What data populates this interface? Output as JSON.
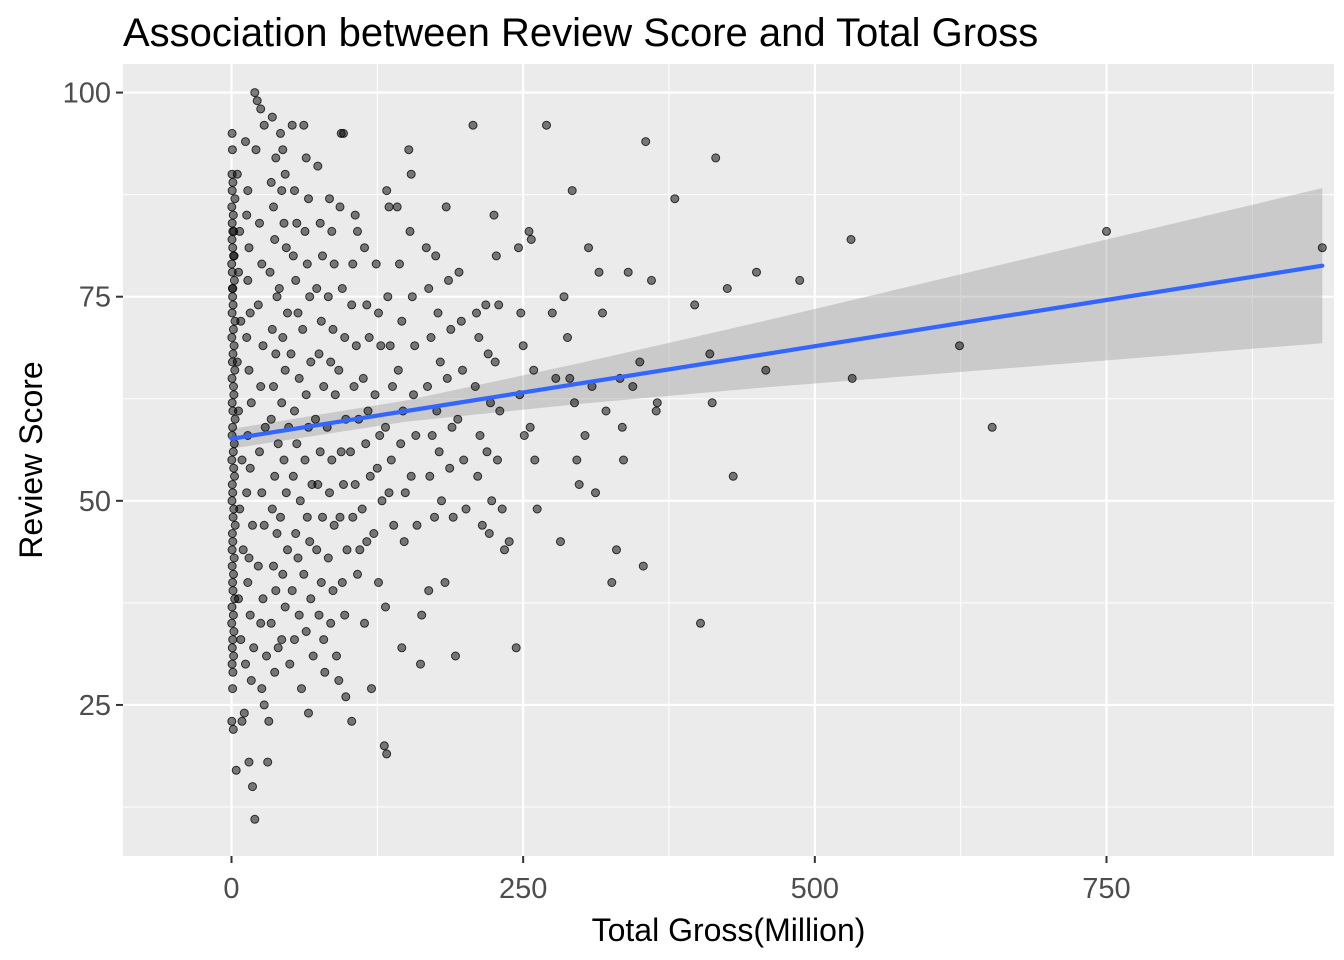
{
  "chart_data": {
    "type": "scatter",
    "title": "Association between Review Score and Total Gross",
    "xlabel": "Total Gross(Million)",
    "ylabel": "Review Score",
    "xlim": [
      -93,
      945
    ],
    "ylim": [
      6.5,
      103.5
    ],
    "x_ticks": [
      0,
      250,
      500,
      750
    ],
    "y_ticks": [
      25,
      50,
      75,
      100
    ],
    "grid": true,
    "legend": "none",
    "colors": {
      "panel": "#ebebeb",
      "grid": "#ffffff",
      "point": "#000000",
      "trend": "#3366ff",
      "band": "#999999"
    },
    "trend": {
      "method": "linear",
      "x": [
        0,
        150,
        300,
        450,
        600,
        750,
        935
      ],
      "y": [
        57.6,
        61.0,
        64.4,
        67.8,
        71.2,
        74.6,
        78.8
      ],
      "lower": [
        56.4,
        59.7,
        61.9,
        63.8,
        65.5,
        67.2,
        69.3
      ],
      "upper": [
        58.8,
        62.3,
        66.9,
        71.8,
        76.9,
        82.0,
        88.3
      ]
    },
    "points": [
      [
        0.5,
        95
      ],
      [
        0.8,
        93
      ],
      [
        1.2,
        89
      ],
      [
        0.3,
        86
      ],
      [
        1.5,
        85
      ],
      [
        0.6,
        84
      ],
      [
        2.0,
        83
      ],
      [
        0.4,
        82
      ],
      [
        1.0,
        81
      ],
      [
        1.8,
        80
      ],
      [
        0.2,
        79
      ],
      [
        0.7,
        78
      ],
      [
        2.5,
        77
      ],
      [
        1.1,
        76
      ],
      [
        0.9,
        75
      ],
      [
        1.4,
        74
      ],
      [
        0.5,
        73
      ],
      [
        3.0,
        72
      ],
      [
        1.6,
        71
      ],
      [
        0.3,
        70
      ],
      [
        2.2,
        69
      ],
      [
        1.3,
        68
      ],
      [
        0.8,
        67
      ],
      [
        2.8,
        66
      ],
      [
        0.4,
        65
      ],
      [
        1.7,
        64
      ],
      [
        2.1,
        63
      ],
      [
        0.6,
        62
      ],
      [
        1.2,
        61
      ],
      [
        3.1,
        60
      ],
      [
        0.9,
        59
      ],
      [
        0.5,
        58
      ],
      [
        2.4,
        57
      ],
      [
        1.5,
        56
      ],
      [
        0.3,
        55
      ],
      [
        1.9,
        54
      ],
      [
        2.6,
        53
      ],
      [
        0.7,
        52
      ],
      [
        1.0,
        51
      ],
      [
        0.4,
        50
      ],
      [
        2.0,
        49
      ],
      [
        1.4,
        48
      ],
      [
        3.2,
        47
      ],
      [
        0.8,
        46
      ],
      [
        1.1,
        45
      ],
      [
        0.5,
        44
      ],
      [
        2.3,
        43
      ],
      [
        0.6,
        42
      ],
      [
        1.7,
        41
      ],
      [
        0.9,
        40
      ],
      [
        1.3,
        39
      ],
      [
        2.7,
        38
      ],
      [
        0.4,
        37
      ],
      [
        1.6,
        36
      ],
      [
        0.2,
        35
      ],
      [
        2.1,
        34
      ],
      [
        1.0,
        33
      ],
      [
        0.7,
        32
      ],
      [
        1.8,
        31
      ],
      [
        0.5,
        30
      ],
      [
        1.2,
        29
      ],
      [
        0.9,
        27
      ],
      [
        0.3,
        23
      ],
      [
        1.5,
        22
      ],
      [
        0.6,
        88
      ],
      [
        2.9,
        87
      ],
      [
        0.4,
        90
      ],
      [
        1.1,
        83
      ],
      [
        2.2,
        80
      ],
      [
        0.8,
        76
      ],
      [
        5,
        90
      ],
      [
        7,
        83
      ],
      [
        6,
        78
      ],
      [
        8,
        72
      ],
      [
        5,
        67
      ],
      [
        6,
        61
      ],
      [
        9,
        55
      ],
      [
        7,
        49
      ],
      [
        10,
        44
      ],
      [
        6,
        38
      ],
      [
        8,
        33
      ],
      [
        12,
        30
      ],
      [
        11,
        24
      ],
      [
        9,
        23
      ],
      [
        4,
        17
      ],
      [
        14,
        88
      ],
      [
        13,
        85
      ],
      [
        15,
        81
      ],
      [
        14,
        77
      ],
      [
        16,
        73
      ],
      [
        13,
        70
      ],
      [
        15,
        66
      ],
      [
        17,
        62
      ],
      [
        14,
        58
      ],
      [
        16,
        54
      ],
      [
        13,
        51
      ],
      [
        18,
        47
      ],
      [
        15,
        43
      ],
      [
        14,
        40
      ],
      [
        16,
        36
      ],
      [
        19,
        32
      ],
      [
        17,
        28
      ],
      [
        15,
        18
      ],
      [
        18,
        15
      ],
      [
        20,
        11
      ],
      [
        12,
        94
      ],
      [
        21,
        93
      ],
      [
        20,
        100
      ],
      [
        22,
        99
      ],
      [
        25,
        98
      ],
      [
        28,
        96
      ],
      [
        24,
        84
      ],
      [
        26,
        79
      ],
      [
        23,
        74
      ],
      [
        27,
        69
      ],
      [
        25,
        64
      ],
      [
        29,
        59
      ],
      [
        24,
        56
      ],
      [
        26,
        51
      ],
      [
        28,
        47
      ],
      [
        23,
        42
      ],
      [
        27,
        38
      ],
      [
        25,
        35
      ],
      [
        30,
        31
      ],
      [
        26,
        27
      ],
      [
        28,
        25
      ],
      [
        32,
        23
      ],
      [
        31,
        18
      ],
      [
        35,
        97
      ],
      [
        38,
        92
      ],
      [
        34,
        89
      ],
      [
        36,
        86
      ],
      [
        37,
        82
      ],
      [
        33,
        78
      ],
      [
        39,
        75
      ],
      [
        35,
        71
      ],
      [
        38,
        68
      ],
      [
        36,
        64
      ],
      [
        34,
        60
      ],
      [
        40,
        57
      ],
      [
        37,
        53
      ],
      [
        35,
        49
      ],
      [
        39,
        46
      ],
      [
        36,
        42
      ],
      [
        38,
        39
      ],
      [
        34,
        35
      ],
      [
        40,
        32
      ],
      [
        37,
        29
      ],
      [
        42,
        95
      ],
      [
        44,
        93
      ],
      [
        46,
        90
      ],
      [
        43,
        88
      ],
      [
        45,
        84
      ],
      [
        47,
        81
      ],
      [
        41,
        76
      ],
      [
        48,
        73
      ],
      [
        44,
        70
      ],
      [
        46,
        66
      ],
      [
        43,
        62
      ],
      [
        49,
        59
      ],
      [
        45,
        55
      ],
      [
        47,
        51
      ],
      [
        42,
        48
      ],
      [
        48,
        44
      ],
      [
        44,
        41
      ],
      [
        46,
        37
      ],
      [
        43,
        33
      ],
      [
        50,
        30
      ],
      [
        52,
        96
      ],
      [
        54,
        88
      ],
      [
        56,
        84
      ],
      [
        53,
        80
      ],
      [
        55,
        77
      ],
      [
        57,
        73
      ],
      [
        51,
        68
      ],
      [
        58,
        65
      ],
      [
        54,
        61
      ],
      [
        56,
        57
      ],
      [
        53,
        53
      ],
      [
        59,
        50
      ],
      [
        55,
        46
      ],
      [
        57,
        43
      ],
      [
        52,
        39
      ],
      [
        58,
        36
      ],
      [
        54,
        33
      ],
      [
        60,
        27
      ],
      [
        62,
        96
      ],
      [
        64,
        92
      ],
      [
        66,
        87
      ],
      [
        63,
        83
      ],
      [
        65,
        79
      ],
      [
        67,
        75
      ],
      [
        61,
        71
      ],
      [
        68,
        67
      ],
      [
        64,
        63
      ],
      [
        66,
        59
      ],
      [
        63,
        55
      ],
      [
        69,
        52
      ],
      [
        65,
        48
      ],
      [
        67,
        45
      ],
      [
        62,
        41
      ],
      [
        68,
        38
      ],
      [
        64,
        34
      ],
      [
        70,
        31
      ],
      [
        66,
        24
      ],
      [
        74,
        91
      ],
      [
        76,
        84
      ],
      [
        78,
        80
      ],
      [
        73,
        76
      ],
      [
        77,
        72
      ],
      [
        75,
        68
      ],
      [
        79,
        64
      ],
      [
        72,
        60
      ],
      [
        76,
        56
      ],
      [
        74,
        52
      ],
      [
        78,
        48
      ],
      [
        73,
        44
      ],
      [
        77,
        40
      ],
      [
        75,
        36
      ],
      [
        79,
        33
      ],
      [
        80,
        29
      ],
      [
        84,
        87
      ],
      [
        86,
        83
      ],
      [
        88,
        79
      ],
      [
        83,
        75
      ],
      [
        87,
        71
      ],
      [
        85,
        67
      ],
      [
        89,
        63
      ],
      [
        82,
        59
      ],
      [
        86,
        55
      ],
      [
        84,
        51
      ],
      [
        88,
        47
      ],
      [
        83,
        43
      ],
      [
        87,
        39
      ],
      [
        85,
        35
      ],
      [
        90,
        31
      ],
      [
        94,
        95
      ],
      [
        96,
        95
      ],
      [
        93,
        86
      ],
      [
        95,
        76
      ],
      [
        97,
        70
      ],
      [
        92,
        66
      ],
      [
        98,
        60
      ],
      [
        94,
        56
      ],
      [
        96,
        52
      ],
      [
        93,
        48
      ],
      [
        99,
        44
      ],
      [
        95,
        40
      ],
      [
        97,
        36
      ],
      [
        92,
        28
      ],
      [
        98,
        26
      ],
      [
        104,
        79
      ],
      [
        106,
        85
      ],
      [
        108,
        83
      ],
      [
        103,
        74
      ],
      [
        107,
        69
      ],
      [
        105,
        64
      ],
      [
        109,
        60
      ],
      [
        102,
        56
      ],
      [
        106,
        52
      ],
      [
        104,
        48
      ],
      [
        110,
        44
      ],
      [
        108,
        41
      ],
      [
        103,
        23
      ],
      [
        114,
        81
      ],
      [
        116,
        74
      ],
      [
        118,
        70
      ],
      [
        113,
        65
      ],
      [
        117,
        61
      ],
      [
        115,
        57
      ],
      [
        119,
        53
      ],
      [
        112,
        49
      ],
      [
        116,
        45
      ],
      [
        114,
        35
      ],
      [
        120,
        27
      ],
      [
        124,
        79
      ],
      [
        126,
        73
      ],
      [
        128,
        69
      ],
      [
        123,
        63
      ],
      [
        127,
        58
      ],
      [
        125,
        54
      ],
      [
        129,
        50
      ],
      [
        122,
        46
      ],
      [
        126,
        40
      ],
      [
        131,
        20
      ],
      [
        133,
        19
      ],
      [
        133,
        88
      ],
      [
        135,
        86
      ],
      [
        134,
        75
      ],
      [
        136,
        69
      ],
      [
        138,
        64
      ],
      [
        132,
        59
      ],
      [
        137,
        55
      ],
      [
        135,
        51
      ],
      [
        139,
        47
      ],
      [
        132,
        37
      ],
      [
        142,
        86
      ],
      [
        144,
        79
      ],
      [
        146,
        72
      ],
      [
        143,
        66
      ],
      [
        147,
        61
      ],
      [
        145,
        57
      ],
      [
        149,
        51
      ],
      [
        148,
        45
      ],
      [
        146,
        32
      ],
      [
        152,
        93
      ],
      [
        154,
        90
      ],
      [
        153,
        83
      ],
      [
        155,
        75
      ],
      [
        157,
        69
      ],
      [
        156,
        63
      ],
      [
        158,
        58
      ],
      [
        154,
        53
      ],
      [
        159,
        47
      ],
      [
        163,
        36
      ],
      [
        162,
        30
      ],
      [
        167,
        81
      ],
      [
        169,
        76
      ],
      [
        171,
        70
      ],
      [
        168,
        64
      ],
      [
        172,
        58
      ],
      [
        170,
        53
      ],
      [
        174,
        48
      ],
      [
        169,
        39
      ],
      [
        175,
        80
      ],
      [
        177,
        73
      ],
      [
        179,
        67
      ],
      [
        176,
        61
      ],
      [
        178,
        56
      ],
      [
        180,
        50
      ],
      [
        184,
        86
      ],
      [
        186,
        77
      ],
      [
        188,
        71
      ],
      [
        185,
        65
      ],
      [
        189,
        59
      ],
      [
        187,
        54
      ],
      [
        190,
        48
      ],
      [
        183,
        40
      ],
      [
        192,
        31
      ],
      [
        195,
        78
      ],
      [
        197,
        72
      ],
      [
        198,
        66
      ],
      [
        194,
        60
      ],
      [
        199,
        55
      ],
      [
        201,
        49
      ],
      [
        207,
        96
      ],
      [
        210,
        73
      ],
      [
        212,
        70
      ],
      [
        209,
        64
      ],
      [
        213,
        58
      ],
      [
        211,
        53
      ],
      [
        215,
        47
      ],
      [
        218,
        74
      ],
      [
        220,
        68
      ],
      [
        222,
        62
      ],
      [
        219,
        56
      ],
      [
        223,
        50
      ],
      [
        221,
        46
      ],
      [
        225,
        85
      ],
      [
        227,
        80
      ],
      [
        229,
        74
      ],
      [
        226,
        67
      ],
      [
        230,
        61
      ],
      [
        228,
        55
      ],
      [
        232,
        49
      ],
      [
        234,
        44
      ],
      [
        238,
        45
      ],
      [
        244,
        32
      ],
      [
        246,
        81
      ],
      [
        248,
        73
      ],
      [
        250,
        69
      ],
      [
        247,
        63
      ],
      [
        251,
        58
      ],
      [
        255,
        83
      ],
      [
        257,
        82
      ],
      [
        259,
        66
      ],
      [
        256,
        59
      ],
      [
        260,
        55
      ],
      [
        262,
        49
      ],
      [
        270,
        96
      ],
      [
        275,
        73
      ],
      [
        278,
        65
      ],
      [
        282,
        45
      ],
      [
        285,
        75
      ],
      [
        288,
        70
      ],
      [
        290,
        65
      ],
      [
        292,
        88
      ],
      [
        294,
        62
      ],
      [
        296,
        55
      ],
      [
        298,
        52
      ],
      [
        303,
        58
      ],
      [
        306,
        81
      ],
      [
        309,
        64
      ],
      [
        312,
        51
      ],
      [
        315,
        78
      ],
      [
        318,
        73
      ],
      [
        321,
        61
      ],
      [
        326,
        40
      ],
      [
        330,
        44
      ],
      [
        333,
        65
      ],
      [
        335,
        59
      ],
      [
        336,
        55
      ],
      [
        340,
        78
      ],
      [
        344,
        64
      ],
      [
        350,
        67
      ],
      [
        353,
        42
      ],
      [
        355,
        94
      ],
      [
        360,
        77
      ],
      [
        364,
        61
      ],
      [
        365,
        62
      ],
      [
        380,
        87
      ],
      [
        397,
        74
      ],
      [
        402,
        35
      ],
      [
        410,
        68
      ],
      [
        412,
        62
      ],
      [
        415,
        92
      ],
      [
        425,
        76
      ],
      [
        430,
        53
      ],
      [
        450,
        78
      ],
      [
        458,
        66
      ],
      [
        487,
        77
      ],
      [
        531,
        82
      ],
      [
        532,
        65
      ],
      [
        624,
        69
      ],
      [
        652,
        59
      ],
      [
        750,
        83
      ],
      [
        935,
        81
      ]
    ]
  }
}
